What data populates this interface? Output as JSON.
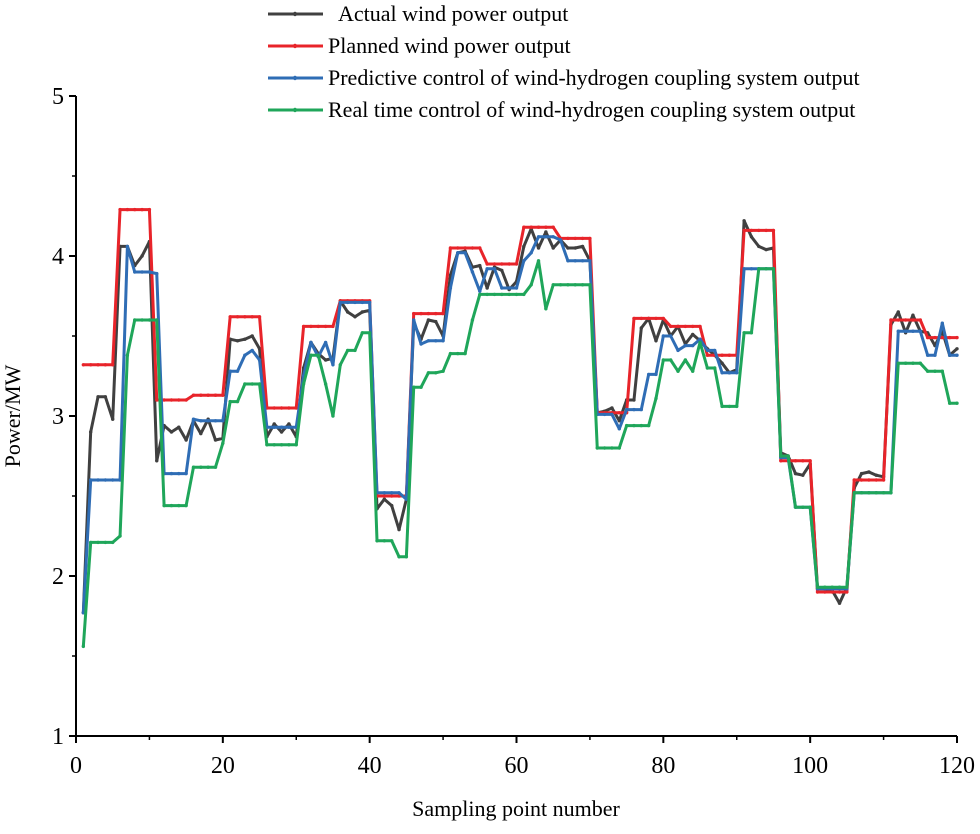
{
  "chart_data": {
    "type": "line",
    "title": "",
    "xlabel": "Sampling point number",
    "ylabel": "Power/MW",
    "xlim": [
      0,
      120
    ],
    "ylim": [
      1,
      5
    ],
    "xticks": [
      0,
      20,
      40,
      60,
      80,
      100,
      120
    ],
    "xtick_labels": [
      "0",
      "20",
      "40",
      "60",
      "80",
      "100",
      "120"
    ],
    "yticks": [
      1,
      2,
      3,
      4,
      5
    ],
    "ytick_labels": [
      "1",
      "2",
      "3",
      "4",
      "5"
    ],
    "grid": false,
    "legend_position": "top-right",
    "x": [
      1,
      2,
      3,
      4,
      5,
      6,
      7,
      8,
      9,
      10,
      11,
      12,
      13,
      14,
      15,
      16,
      17,
      18,
      19,
      20,
      21,
      22,
      23,
      24,
      25,
      26,
      27,
      28,
      29,
      30,
      31,
      32,
      33,
      34,
      35,
      36,
      37,
      38,
      39,
      40,
      41,
      42,
      43,
      44,
      45,
      46,
      47,
      48,
      49,
      50,
      51,
      52,
      53,
      54,
      55,
      56,
      57,
      58,
      59,
      60,
      61,
      62,
      63,
      64,
      65,
      66,
      67,
      68,
      69,
      70,
      71,
      72,
      73,
      74,
      75,
      76,
      77,
      78,
      79,
      80,
      81,
      82,
      83,
      84,
      85,
      86,
      87,
      88,
      89,
      90,
      91,
      92,
      93,
      94,
      95,
      96,
      97,
      98,
      99,
      100,
      101,
      102,
      103,
      104,
      105,
      106,
      107,
      108,
      109,
      110,
      111,
      112,
      113,
      114,
      115,
      116,
      117,
      118,
      119,
      120
    ],
    "series": [
      {
        "name": "Actual wind power output",
        "color": "#404040",
        "values": [
          1.77,
          2.9,
          3.12,
          3.12,
          2.98,
          4.06,
          4.06,
          3.94,
          4.0,
          4.09,
          2.72,
          2.94,
          2.9,
          2.93,
          2.85,
          2.97,
          2.89,
          2.98,
          2.85,
          2.86,
          3.48,
          3.47,
          3.48,
          3.5,
          3.42,
          2.87,
          2.95,
          2.9,
          2.95,
          2.87,
          3.3,
          3.46,
          3.39,
          3.35,
          3.36,
          3.72,
          3.65,
          3.62,
          3.65,
          3.66,
          2.42,
          2.48,
          2.44,
          2.29,
          2.48,
          3.58,
          3.48,
          3.6,
          3.59,
          3.5,
          3.88,
          4.02,
          4.03,
          3.93,
          3.94,
          3.8,
          3.93,
          3.91,
          3.79,
          3.84,
          4.06,
          4.17,
          4.05,
          4.15,
          4.05,
          4.1,
          4.05,
          4.05,
          4.06,
          3.97,
          3.02,
          3.03,
          3.05,
          2.97,
          3.1,
          3.1,
          3.55,
          3.61,
          3.47,
          3.6,
          3.5,
          3.56,
          3.45,
          3.51,
          3.47,
          3.42,
          3.38,
          3.33,
          3.27,
          3.29,
          4.22,
          4.12,
          4.06,
          4.04,
          4.05,
          2.77,
          2.75,
          2.64,
          2.63,
          2.7,
          1.92,
          1.92,
          1.91,
          1.83,
          1.93,
          2.55,
          2.64,
          2.65,
          2.63,
          2.62,
          3.57,
          3.65,
          3.52,
          3.63,
          3.53,
          3.52,
          3.44,
          3.53,
          3.38,
          3.42
        ]
      },
      {
        "name": "Planned wind power output",
        "color": "#e8242a",
        "values": [
          3.32,
          3.32,
          3.32,
          3.32,
          3.32,
          4.29,
          4.29,
          4.29,
          4.29,
          4.29,
          3.1,
          3.1,
          3.1,
          3.1,
          3.1,
          3.13,
          3.13,
          3.13,
          3.13,
          3.13,
          3.62,
          3.62,
          3.62,
          3.62,
          3.62,
          3.05,
          3.05,
          3.05,
          3.05,
          3.05,
          3.56,
          3.56,
          3.56,
          3.56,
          3.56,
          3.72,
          3.72,
          3.72,
          3.72,
          3.72,
          2.5,
          2.5,
          2.5,
          2.5,
          2.5,
          3.64,
          3.64,
          3.64,
          3.64,
          3.64,
          4.05,
          4.05,
          4.05,
          4.05,
          4.05,
          3.95,
          3.95,
          3.95,
          3.95,
          3.95,
          4.18,
          4.18,
          4.18,
          4.18,
          4.18,
          4.11,
          4.11,
          4.11,
          4.11,
          4.11,
          3.02,
          3.02,
          3.02,
          3.02,
          3.02,
          3.61,
          3.61,
          3.61,
          3.61,
          3.61,
          3.56,
          3.56,
          3.56,
          3.56,
          3.56,
          3.38,
          3.38,
          3.38,
          3.38,
          3.38,
          4.16,
          4.16,
          4.16,
          4.16,
          4.16,
          2.72,
          2.72,
          2.72,
          2.72,
          2.72,
          1.9,
          1.9,
          1.9,
          1.9,
          1.9,
          2.6,
          2.6,
          2.6,
          2.6,
          2.6,
          3.6,
          3.6,
          3.6,
          3.6,
          3.6,
          3.49,
          3.49,
          3.49,
          3.49,
          3.49
        ]
      },
      {
        "name": "Predictive control of wind-hydrogen coupling system output",
        "color": "#2f6db5",
        "values": [
          1.77,
          2.6,
          2.6,
          2.6,
          2.6,
          2.6,
          4.06,
          3.9,
          3.9,
          3.9,
          3.89,
          2.64,
          2.64,
          2.64,
          2.64,
          2.98,
          2.97,
          2.97,
          2.97,
          2.97,
          3.28,
          3.28,
          3.38,
          3.41,
          3.35,
          2.93,
          2.93,
          2.93,
          2.93,
          2.93,
          3.25,
          3.46,
          3.37,
          3.46,
          3.32,
          3.71,
          3.71,
          3.71,
          3.71,
          3.71,
          2.52,
          2.52,
          2.52,
          2.52,
          2.48,
          3.6,
          3.45,
          3.47,
          3.47,
          3.47,
          3.8,
          4.02,
          4.02,
          3.9,
          3.78,
          3.92,
          3.92,
          3.8,
          3.8,
          3.8,
          3.97,
          4.02,
          4.12,
          4.12,
          4.12,
          4.1,
          3.97,
          3.97,
          3.97,
          3.97,
          3.01,
          3.01,
          3.01,
          2.92,
          3.04,
          3.04,
          3.04,
          3.26,
          3.26,
          3.5,
          3.5,
          3.41,
          3.44,
          3.44,
          3.48,
          3.41,
          3.41,
          3.27,
          3.27,
          3.27,
          3.92,
          3.92,
          3.92,
          3.92,
          3.92,
          2.74,
          2.74,
          2.43,
          2.43,
          2.43,
          1.92,
          1.92,
          1.92,
          1.92,
          1.92,
          2.52,
          2.52,
          2.52,
          2.52,
          2.52,
          2.52,
          3.53,
          3.53,
          3.53,
          3.53,
          3.38,
          3.38,
          3.58,
          3.38,
          3.38
        ]
      },
      {
        "name": "Real time control of wind-hydrogen coupling system output",
        "color": "#1fa65a",
        "values": [
          1.56,
          2.21,
          2.21,
          2.21,
          2.21,
          2.25,
          3.38,
          3.6,
          3.6,
          3.6,
          3.6,
          2.44,
          2.44,
          2.44,
          2.44,
          2.68,
          2.68,
          2.68,
          2.68,
          2.83,
          3.09,
          3.09,
          3.2,
          3.2,
          3.2,
          2.82,
          2.82,
          2.82,
          2.82,
          2.82,
          3.2,
          3.38,
          3.38,
          3.2,
          3.0,
          3.32,
          3.41,
          3.41,
          3.52,
          3.52,
          2.22,
          2.22,
          2.22,
          2.12,
          2.12,
          3.18,
          3.18,
          3.27,
          3.27,
          3.28,
          3.39,
          3.39,
          3.39,
          3.6,
          3.76,
          3.76,
          3.76,
          3.76,
          3.76,
          3.76,
          3.76,
          3.82,
          3.97,
          3.67,
          3.82,
          3.82,
          3.82,
          3.82,
          3.82,
          3.82,
          2.8,
          2.8,
          2.8,
          2.8,
          2.94,
          2.94,
          2.94,
          2.94,
          3.11,
          3.35,
          3.35,
          3.28,
          3.35,
          3.28,
          3.46,
          3.3,
          3.3,
          3.06,
          3.06,
          3.06,
          3.52,
          3.52,
          3.92,
          3.92,
          3.92,
          2.75,
          2.75,
          2.43,
          2.43,
          2.43,
          1.93,
          1.93,
          1.93,
          1.93,
          1.93,
          2.52,
          2.52,
          2.52,
          2.52,
          2.52,
          2.52,
          3.33,
          3.33,
          3.33,
          3.33,
          3.28,
          3.28,
          3.28,
          3.08,
          3.08
        ]
      }
    ]
  }
}
